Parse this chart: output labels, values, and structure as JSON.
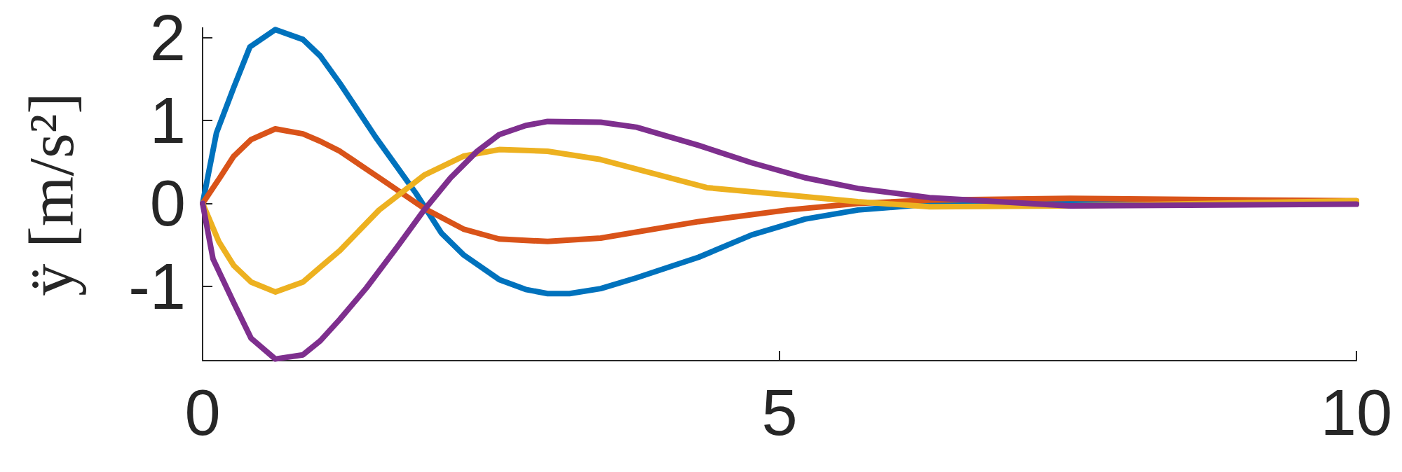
{
  "chart_data": {
    "type": "line",
    "ylabel": "ÿ [m/s²]",
    "xlim": [
      0,
      10
    ],
    "xticks": [
      0,
      5,
      10
    ],
    "ylim": [
      -1.9,
      2.12
    ],
    "yticks": [
      -1,
      0,
      1,
      2
    ],
    "marker": "none",
    "line_style": "solid",
    "series": [
      {
        "color": "#0072bd",
        "x": [
          0,
          0.12,
          0.27,
          0.41,
          0.63,
          0.87,
          1.02,
          1.19,
          1.5,
          1.85,
          2.07,
          2.26,
          2.57,
          2.8,
          2.99,
          3.18,
          3.45,
          3.76,
          4.3,
          4.76,
          5.22,
          5.68,
          6.3,
          7.5,
          10
        ],
        "values": [
          0,
          0.85,
          1.4,
          1.89,
          2.1,
          1.98,
          1.78,
          1.45,
          0.8,
          0.12,
          -0.36,
          -0.62,
          -0.92,
          -1.04,
          -1.09,
          -1.09,
          -1.03,
          -0.9,
          -0.65,
          -0.38,
          -0.19,
          -0.08,
          -0.01,
          0.01,
          0
        ]
      },
      {
        "color": "#d95319",
        "x": [
          0,
          0.14,
          0.27,
          0.42,
          0.63,
          0.87,
          1.02,
          1.19,
          1.53,
          1.92,
          2.26,
          2.57,
          2.99,
          3.45,
          4.3,
          5.07,
          5.68,
          6.3,
          7.52,
          10
        ],
        "values": [
          0,
          0.29,
          0.57,
          0.77,
          0.9,
          0.84,
          0.75,
          0.63,
          0.31,
          -0.06,
          -0.31,
          -0.43,
          -0.46,
          -0.42,
          -0.22,
          -0.08,
          0,
          0.04,
          0.06,
          0.03
        ]
      },
      {
        "color": "#edb120",
        "x": [
          0,
          0.14,
          0.27,
          0.42,
          0.63,
          0.87,
          1.02,
          1.19,
          1.53,
          1.92,
          2.26,
          2.57,
          2.99,
          3.45,
          4.37,
          5.07,
          5.68,
          6.3,
          7.52,
          10
        ],
        "values": [
          0,
          -0.46,
          -0.75,
          -0.95,
          -1.07,
          -0.95,
          -0.77,
          -0.57,
          -0.08,
          0.34,
          0.57,
          0.65,
          0.63,
          0.53,
          0.19,
          0.1,
          0.02,
          -0.04,
          -0.03,
          0.03
        ]
      },
      {
        "color": "#7e2f8e",
        "x": [
          0,
          0.09,
          0.27,
          0.42,
          0.63,
          0.87,
          1.02,
          1.19,
          1.42,
          1.69,
          1.92,
          2.15,
          2.38,
          2.57,
          2.8,
          2.99,
          3.45,
          3.76,
          4.3,
          4.76,
          5.22,
          5.68,
          6.3,
          7.52,
          10
        ],
        "values": [
          0,
          -0.67,
          -1.2,
          -1.63,
          -1.88,
          -1.83,
          -1.66,
          -1.4,
          -1.02,
          -0.52,
          -0.08,
          0.31,
          0.63,
          0.83,
          0.94,
          0.99,
          0.98,
          0.92,
          0.7,
          0.49,
          0.31,
          0.18,
          0.07,
          -0.03,
          -0.01
        ]
      }
    ]
  }
}
